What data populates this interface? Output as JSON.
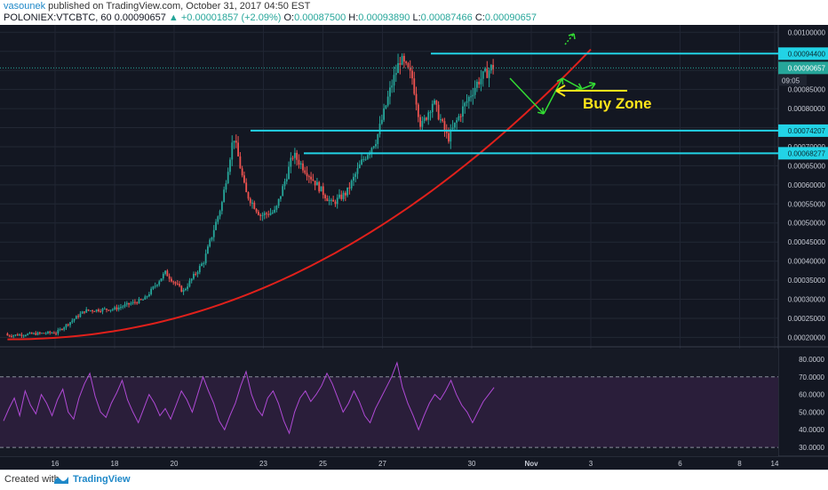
{
  "header": {
    "author": "vasounek",
    "published_text": "published on TradingView.com, October 31, 2017 04:50 EST",
    "symbol": "POLONIEX:VTCBTC, 60",
    "last_price": "0.00090657",
    "change_text": "+0.00001857 (+2.09%)",
    "o_label": "O:",
    "o_value": "0.00087500",
    "h_label": "H:",
    "h_value": "0.00093890",
    "l_label": "L:",
    "l_value": "0.00087466",
    "c_label": "C:",
    "c_value": "0.00090657"
  },
  "footer": {
    "created_with": "Created with",
    "brand": "TradingView"
  },
  "colors": {
    "background": "#131722",
    "panel_bg": "#1c1f2b",
    "up": "#26a69a",
    "down": "#ef5350",
    "cyan": "#22d3e6",
    "red_line": "#e0201b",
    "green_arrow": "#33dd33",
    "yellow": "#ffe51a",
    "rsi_line": "#b04ad6",
    "rsi_band": "#2a1e3a",
    "axis_text": "#c8ccd6"
  },
  "annotation": {
    "buy_zone": "Buy Zone"
  },
  "last_bar_time": "09:05",
  "chart_data": [
    {
      "type": "candlestick",
      "title": "POLONIEX:VTCBTC, 60",
      "y_axis_ticks": [
        "0.00100000",
        "0.00095000",
        "0.00090000",
        "0.00085000",
        "0.00080000",
        "0.00075000",
        "0.00070000",
        "0.00065000",
        "0.00060000",
        "0.00055000",
        "0.00050000",
        "0.00045000",
        "0.00040000",
        "0.00035000",
        "0.00030000",
        "0.00025000",
        "0.00020000"
      ],
      "ylim": [
        0.00018,
        0.00101
      ],
      "x_ticks": [
        "16",
        "18",
        "20",
        "23",
        "25",
        "27",
        "30",
        "Nov",
        "3",
        "6",
        "8",
        "14"
      ],
      "price_path": [
        {
          "x": 16,
          "y": 0.00021
        },
        {
          "x": 17,
          "y": 0.00027
        },
        {
          "x": 18,
          "y": 0.000275
        },
        {
          "x": 19,
          "y": 0.0003
        },
        {
          "x": 19.7,
          "y": 0.00037
        },
        {
          "x": 20.3,
          "y": 0.00032
        },
        {
          "x": 21,
          "y": 0.0004
        },
        {
          "x": 21.6,
          "y": 0.00055
        },
        {
          "x": 22,
          "y": 0.00073
        },
        {
          "x": 22.4,
          "y": 0.00058
        },
        {
          "x": 22.9,
          "y": 0.00052
        },
        {
          "x": 23.4,
          "y": 0.00053
        },
        {
          "x": 24,
          "y": 0.00068
        },
        {
          "x": 24.6,
          "y": 0.00062
        },
        {
          "x": 25.3,
          "y": 0.00055
        },
        {
          "x": 25.8,
          "y": 0.00058
        },
        {
          "x": 26.3,
          "y": 0.00066
        },
        {
          "x": 26.8,
          "y": 0.00072
        },
        {
          "x": 27.3,
          "y": 0.00086
        },
        {
          "x": 27.6,
          "y": 0.00093
        },
        {
          "x": 28,
          "y": 0.00088
        },
        {
          "x": 28.3,
          "y": 0.00075
        },
        {
          "x": 28.7,
          "y": 0.00082
        },
        {
          "x": 29.2,
          "y": 0.00072
        },
        {
          "x": 29.7,
          "y": 0.0008
        },
        {
          "x": 30.2,
          "y": 0.00087
        },
        {
          "x": 30.7,
          "y": 0.00091
        }
      ],
      "horizontal_levels": [
        {
          "label": "0.00094400",
          "value": 0.000944
        },
        {
          "label": "0.00090657",
          "value": 0.00090657
        },
        {
          "label": "0.00074207",
          "value": 0.00074207
        },
        {
          "label": "0.00068277",
          "value": 0.00068277
        }
      ],
      "trendline": "red curved support line"
    },
    {
      "type": "line",
      "title": "RSI",
      "y_axis_ticks": [
        "80.0000",
        "70.0000",
        "60.0000",
        "50.0000",
        "40.0000",
        "30.0000"
      ],
      "ylim": [
        26,
        84
      ],
      "band": [
        30,
        70
      ],
      "values": [
        45,
        52,
        58,
        48,
        62,
        54,
        49,
        60,
        55,
        48,
        57,
        63,
        50,
        46,
        58,
        66,
        72,
        59,
        50,
        47,
        55,
        61,
        68,
        57,
        50,
        44,
        52,
        60,
        55,
        48,
        52,
        46,
        54,
        62,
        57,
        50,
        60,
        70,
        62,
        55,
        45,
        40,
        48,
        55,
        65,
        73,
        60,
        52,
        48,
        58,
        62,
        55,
        45,
        38,
        50,
        58,
        62,
        56,
        60,
        65,
        72,
        66,
        58,
        50,
        55,
        62,
        56,
        48,
        44,
        52,
        58,
        64,
        70,
        78,
        64,
        55,
        48,
        40,
        48,
        55,
        60,
        57,
        62,
        68,
        60,
        54,
        50,
        44,
        50,
        56,
        60,
        64
      ]
    }
  ]
}
